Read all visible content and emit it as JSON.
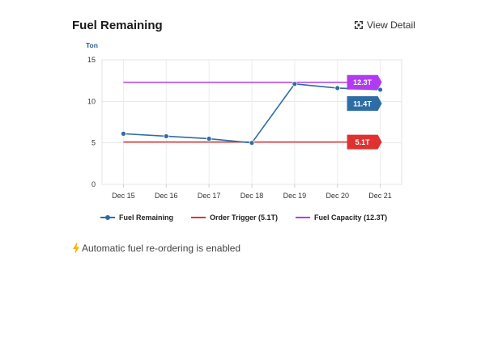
{
  "card": {
    "title": "Fuel Remaining",
    "view_detail_label": "View Detail",
    "status_text": "Automatic fuel re-ordering is enabled",
    "view_detail_icon": "expand-icon",
    "status_icon": "lightning-bolt-icon"
  },
  "colors": {
    "fuel_remaining": "#2e6da4",
    "order_trigger": "#e03131",
    "fuel_capacity": "#b13bf0",
    "bolt": "#f5b400"
  },
  "chart_data": {
    "type": "line",
    "ylabel": "Ton",
    "ylim": [
      0,
      15
    ],
    "yticks": [
      "0",
      "5",
      "10",
      "15"
    ],
    "categories": [
      "Dec 15",
      "Dec 16",
      "Dec 17",
      "Dec 18",
      "Dec 19",
      "Dec 20",
      "Dec 21"
    ],
    "grid": true,
    "legend_position": "bottom",
    "series": [
      {
        "name": "Fuel Remaining",
        "color": "#2e6da4",
        "values": [
          6.1,
          5.8,
          5.5,
          5.0,
          12.1,
          11.6,
          11.4
        ],
        "marker": true
      },
      {
        "name": "Order Trigger (5.1T)",
        "color": "#e03131",
        "values": [
          5.1,
          5.1,
          5.1,
          5.1,
          5.1,
          5.1,
          5.1
        ],
        "marker": false
      },
      {
        "name": "Fuel Capacity (12.3T)",
        "color": "#b13bf0",
        "values": [
          12.3,
          12.3,
          12.3,
          12.3,
          12.3,
          12.3,
          12.3
        ],
        "marker": false
      }
    ],
    "annotations": [
      {
        "series": "Fuel Capacity (12.3T)",
        "text": "12.3T",
        "value": 12.3,
        "color": "#b13bf0"
      },
      {
        "series": "Fuel Remaining",
        "text": "11.4T",
        "value": 11.4,
        "color": "#2e6da4"
      },
      {
        "series": "Order Trigger (5.1T)",
        "text": "5.1T",
        "value": 5.1,
        "color": "#e03131"
      }
    ]
  },
  "legend": [
    {
      "label": "Fuel Remaining",
      "color": "#2e6da4",
      "marker": true
    },
    {
      "label": "Order Trigger (5.1T)",
      "color": "#e03131",
      "marker": false
    },
    {
      "label": "Fuel Capacity (12.3T)",
      "color": "#b13bf0",
      "marker": false
    }
  ]
}
